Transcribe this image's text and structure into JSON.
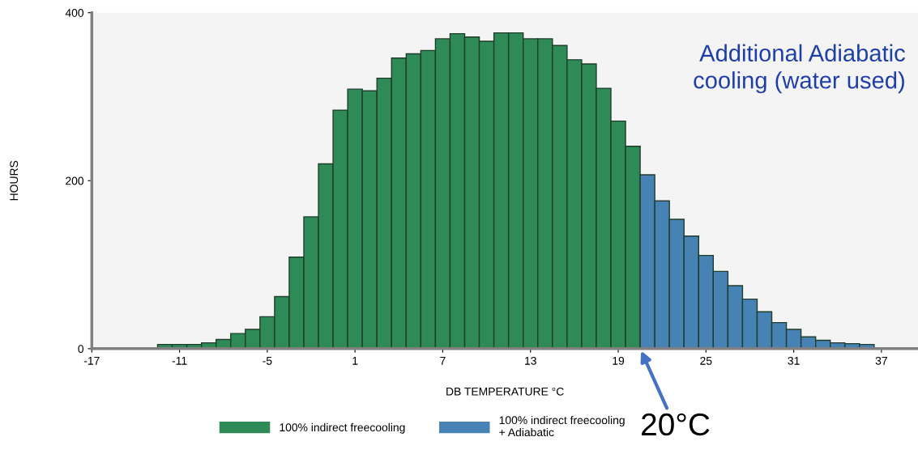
{
  "chart_data": {
    "type": "bar",
    "xlabel": "DB TEMPERATURE °C",
    "ylabel": "HOURS",
    "series": [
      {
        "name": "100% indirect freecooling",
        "color": "#2e8b57",
        "x": [
          -12,
          -11,
          -10,
          -9,
          -8,
          -7,
          -6,
          -5,
          -4,
          -3,
          -2,
          -1,
          0,
          1,
          2,
          3,
          4,
          5,
          6,
          7,
          8,
          9,
          10,
          11,
          12,
          13,
          14,
          15,
          16,
          17,
          18,
          19,
          20
        ],
        "values": [
          5,
          5,
          5,
          7,
          11,
          18,
          23,
          38,
          62,
          109,
          157,
          220,
          284,
          309,
          307,
          322,
          346,
          351,
          355,
          369,
          375,
          371,
          366,
          376,
          376,
          369,
          369,
          361,
          344,
          339,
          310,
          271,
          241
        ]
      },
      {
        "name": "100% indirect freecooling\n+ Adiabatic",
        "color": "#4682b4",
        "x": [
          21,
          22,
          23,
          24,
          25,
          26,
          27,
          28,
          29,
          30,
          31,
          32,
          33,
          34,
          35,
          36
        ],
        "values": [
          207,
          176,
          154,
          134,
          111,
          92,
          75,
          59,
          44,
          31,
          23,
          14,
          10,
          7,
          6,
          5
        ]
      }
    ],
    "xlim": [
      -17,
      39.5
    ],
    "xticks": [
      -17,
      -11,
      -5,
      1,
      7,
      13,
      19,
      25,
      31,
      37
    ],
    "ylim": [
      0,
      400
    ],
    "yticks": [
      0,
      200,
      400
    ],
    "grid": false,
    "legend": "bottom",
    "annotations": [
      "Additional Adiabatic\ncooling (water used)",
      {
        "text": "20°C",
        "x": 20.5,
        "y": 0
      }
    ]
  }
}
